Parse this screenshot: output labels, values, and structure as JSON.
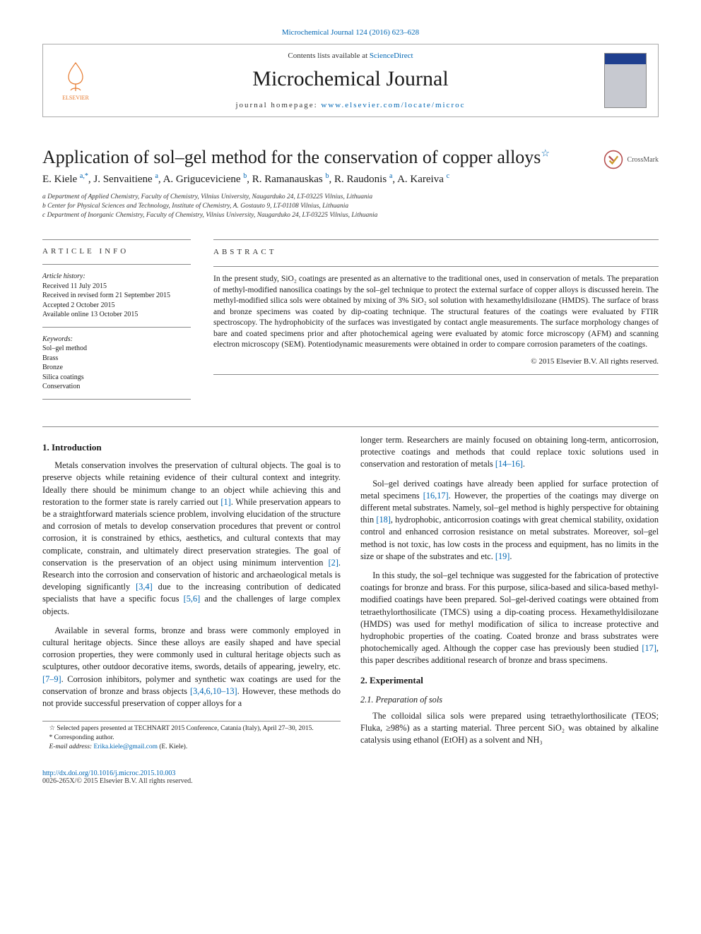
{
  "top_ref": "Microchemical Journal 124 (2016) 623–628",
  "header": {
    "contents_prefix": "Contents lists available at ",
    "contents_link": "ScienceDirect",
    "journal": "Microchemical Journal",
    "homepage_prefix": "journal homepage: ",
    "homepage_link": "www.elsevier.com/locate/microc",
    "elsevier_label": "ELSEVIER"
  },
  "article_title": "Application of sol–gel method for the conservation of copper alloys",
  "title_star": "☆",
  "crossmark_label": "CrossMark",
  "authors_html": "E. Kiele <sup>a,*</sup>, J. Senvaitiene <sup>a</sup>, A. Griguceviciene <sup>b</sup>, R. Ramanauskas <sup>b</sup>, R. Raudonis <sup>a</sup>, A. Kareiva <sup>c</sup>",
  "affils": {
    "a": "a  Department of Applied Chemistry, Faculty of Chemistry, Vilnius University, Naugarduko 24, LT-03225 Vilnius, Lithuania",
    "b": "b  Center for Physical Sciences and Technology, Institute of Chemistry, A. Gostauto 9, LT-01108 Vilnius, Lithuania",
    "c": "c  Department of Inorganic Chemistry, Faculty of Chemistry, Vilnius University, Naugarduko 24, LT-03225 Vilnius, Lithuania"
  },
  "info": {
    "hdr": "article info",
    "history_label": "Article history:",
    "received": "Received 11 July 2015",
    "revised": "Received in revised form 21 September 2015",
    "accepted": "Accepted 2 October 2015",
    "online": "Available online 13 October 2015",
    "keywords_label": "Keywords:",
    "keywords": [
      "Sol–gel method",
      "Brass",
      "Bronze",
      "Silica coatings",
      "Conservation"
    ]
  },
  "abstract": {
    "hdr": "abstract",
    "text": "In the present study, SiO₂ coatings are presented as an alternative to the traditional ones, used in conservation of metals. The preparation of methyl-modified nanosilica coatings by the sol–gel technique to protect the external surface of copper alloys is discussed herein. The methyl-modified silica sols were obtained by mixing of 3% SiO₂ sol solution with hexamethyldisilozane (HMDS). The surface of brass and bronze specimens was coated by dip-coating technique. The structural features of the coatings were evaluated by FTIR spectroscopy. The hydrophobicity of the surfaces was investigated by contact angle measurements. The surface morphology changes of bare and coated specimens prior and after photochemical ageing were evaluated by atomic force microscopy (AFM) and scanning electron microscopy (SEM). Potentiodynamic measurements were obtained in order to compare corrosion parameters of the coatings.",
    "copyright": "© 2015 Elsevier B.V. All rights reserved."
  },
  "body": {
    "s1_title": "1. Introduction",
    "s1_p1_a": "Metals conservation involves the preservation of cultural objects. The goal is to preserve objects while retaining evidence of their cultural context and integrity. Ideally there should be minimum change to an object while achieving this and restoration to the former state is rarely carried out ",
    "s1_p1_c1": "[1]",
    "s1_p1_b": ". While preservation appears to be a straightforward materials science problem, involving elucidation of the structure and corrosion of metals to develop conservation procedures that prevent or control corrosion, it is constrained by ethics, aesthetics, and cultural contexts that may complicate, constrain, and ultimately direct preservation strategies. The goal of conservation is the preservation of an object using minimum intervention ",
    "s1_p1_c2": "[2]",
    "s1_p1_c": ". Research into the corrosion and conservation of historic and archaeological metals is developing significantly ",
    "s1_p1_c3": "[3,4]",
    "s1_p1_d": " due to the increasing contribution of dedicated specialists that have a specific focus ",
    "s1_p1_c4": "[5,6]",
    "s1_p1_e": " and the challenges of large complex objects.",
    "s1_p2_a": "Available in several forms, bronze and brass were commonly employed in cultural heritage objects. Since these alloys are easily shaped and have special corrosion properties, they were commonly used in cultural heritage objects such as sculptures, other outdoor decorative items, swords, details of appearing, jewelry, etc. ",
    "s1_p2_c1": "[7–9]",
    "s1_p2_b": ". Corrosion inhibitors, polymer and synthetic wax coatings are used for the conservation of bronze and brass objects ",
    "s1_p2_c2": "[3,4,6,10–13]",
    "s1_p2_c": ". However, these methods do not provide successful preservation of copper alloys for a ",
    "s1_p3_a": "longer term. Researchers are mainly focused on obtaining long-term, anticorrosion, protective coatings and methods that could replace toxic solutions used in conservation and restoration of metals ",
    "s1_p3_c1": "[14–16]",
    "s1_p3_b": ".",
    "s1_p4_a": "Sol–gel derived coatings have already been applied for surface protection of metal specimens ",
    "s1_p4_c1": "[16,17]",
    "s1_p4_b": ". However, the properties of the coatings may diverge on different metal substrates. Namely, sol–gel method is highly perspective for obtaining thin ",
    "s1_p4_c2": "[18]",
    "s1_p4_c": ", hydrophobic, anticorrosion coatings with great chemical stability, oxidation control and enhanced corrosion resistance on metal substrates. Moreover, sol–gel method is not toxic, has low costs in the process and equipment, has no limits in the size or shape of the substrates and etc. ",
    "s1_p4_c3": "[19]",
    "s1_p4_d": ".",
    "s1_p5_a": "In this study, the sol–gel technique was suggested for the fabrication of protective coatings for bronze and brass. For this purpose, silica-based and silica-based methyl-modified coatings have been prepared. Sol–gel-derived coatings were obtained from tetraethylorthosilicate (TMCS) using a dip-coating process. Hexamethyldisilozane (HMDS) was used for methyl modification of silica to increase protective and hydrophobic properties of the coating. Coated bronze and brass substrates were photochemically aged. Although the copper case has previously been studied ",
    "s1_p5_c1": "[17]",
    "s1_p5_b": ", this paper describes additional research of bronze and brass specimens.",
    "s2_title": "2. Experimental",
    "s21_title": "2.1. Preparation of sols",
    "s21_p1": "The colloidal silica sols were prepared using tetraethylorthosilicate (TEOS; Fluka, ≥98%) as a starting material. Three percent SiO₂ was obtained by alkaline catalysis using ethanol (EtOH) as a solvent and NH₃"
  },
  "footnotes": {
    "f1": "☆  Selected papers presented at TECHNART 2015 Conference, Catania (Italy), April 27–30, 2015.",
    "f2": "*  Corresponding author.",
    "f3_label": "E-mail address: ",
    "f3_email": "Erika.kiele@gmail.com",
    "f3_tail": " (E. Kiele)."
  },
  "footer": {
    "doi": "http://dx.doi.org/10.1016/j.microc.2015.10.003",
    "copyright": "0026-265X/© 2015 Elsevier B.V. All rights reserved."
  },
  "colors": {
    "link": "#0066b3",
    "elsevier": "#e6782b"
  }
}
